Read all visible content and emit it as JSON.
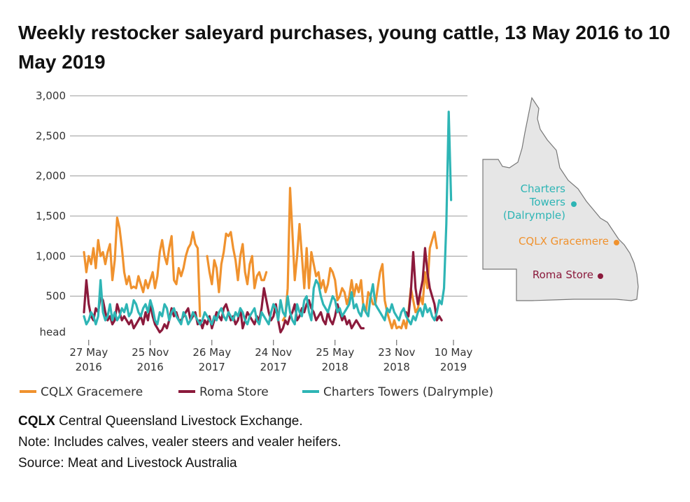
{
  "title": "Weekly restocker saleyard purchases, young cattle, 13 May 2016 to 10 May 2019",
  "colors": {
    "cqlx": "#F0922E",
    "roma": "#8B1A3C",
    "charters": "#2EB5B5",
    "grid": "#999999",
    "map_fill": "#E6E6E6",
    "map_stroke": "#777777"
  },
  "chart_data": {
    "type": "line",
    "y_unit_label": "head",
    "ylim": [
      0,
      3000
    ],
    "yticks": [
      500,
      1000,
      1500,
      2000,
      2500,
      3000
    ],
    "ytick_labels": [
      "500",
      "1,000",
      "1,500",
      "2,000",
      "2,500",
      "3,000"
    ],
    "xlim_week": [
      0,
      156
    ],
    "xticks": [
      {
        "week": 2,
        "line1": "27 May",
        "line2": "2016"
      },
      {
        "week": 28,
        "line1": "25 Nov",
        "line2": "2016"
      },
      {
        "week": 54,
        "line1": "26 May",
        "line2": "2017"
      },
      {
        "week": 80,
        "line1": "24 Nov",
        "line2": "2017"
      },
      {
        "week": 106,
        "line1": "25 May",
        "line2": "2018"
      },
      {
        "week": 132,
        "line1": "23 Nov",
        "line2": "2018"
      },
      {
        "week": 156,
        "line1": "10 May",
        "line2": "2019"
      }
    ],
    "series": [
      {
        "name": "CQLX Gracemere",
        "color": "#F0922E",
        "values": [
          1050,
          800,
          1000,
          900,
          1100,
          850,
          1200,
          1000,
          1050,
          900,
          1050,
          1150,
          700,
          950,
          1480,
          1350,
          1100,
          800,
          650,
          750,
          600,
          620,
          600,
          750,
          650,
          550,
          700,
          600,
          700,
          800,
          600,
          750,
          1050,
          1200,
          1000,
          900,
          1100,
          1250,
          700,
          650,
          850,
          750,
          850,
          1000,
          1100,
          1150,
          1300,
          1150,
          1100,
          250,
          null,
          null,
          1000,
          800,
          650,
          950,
          850,
          550,
          900,
          1050,
          1280,
          1250,
          1300,
          1100,
          950,
          700,
          1000,
          1150,
          800,
          650,
          900,
          1000,
          600,
          750,
          800,
          700,
          700,
          800,
          null,
          null,
          400,
          300,
          null,
          null,
          200,
          250,
          600,
          1850,
          1300,
          700,
          1000,
          1400,
          1000,
          600,
          1100,
          600,
          1050,
          900,
          750,
          800,
          600,
          700,
          550,
          650,
          850,
          800,
          700,
          450,
          500,
          600,
          550,
          400,
          500,
          700,
          500,
          650,
          550,
          700,
          350,
          300,
          550,
          500,
          400,
          400,
          600,
          800,
          900,
          450,
          300,
          200,
          100,
          200,
          100,
          120,
          100,
          200,
          100,
          300,
          600,
          450,
          300,
          350,
          500,
          400,
          800,
          600,
          1100,
          1200,
          1300,
          1100
        ]
      },
      {
        "name": "Roma Store",
        "color": "#8B1A3C",
        "values": [
          300,
          700,
          400,
          250,
          200,
          350,
          300,
          500,
          450,
          300,
          200,
          250,
          150,
          200,
          400,
          300,
          200,
          250,
          200,
          150,
          200,
          100,
          150,
          200,
          250,
          150,
          300,
          200,
          400,
          250,
          150,
          100,
          50,
          80,
          150,
          100,
          200,
          350,
          250,
          300,
          200,
          200,
          250,
          300,
          350,
          200,
          250,
          300,
          150,
          200,
          100,
          200,
          150,
          250,
          100,
          200,
          300,
          250,
          200,
          350,
          400,
          300,
          200,
          250,
          150,
          200,
          350,
          100,
          200,
          300,
          250,
          200,
          150,
          250,
          200,
          350,
          600,
          450,
          300,
          200,
          250,
          400,
          200,
          50,
          100,
          200,
          150,
          250,
          300,
          400,
          200,
          250,
          350,
          300,
          400,
          450,
          350,
          300,
          200,
          250,
          300,
          200,
          150,
          300,
          200,
          150,
          250,
          400,
          300,
          200,
          250,
          150,
          200,
          100,
          150,
          200,
          150,
          100,
          100,
          null,
          null,
          null,
          null,
          null,
          null,
          null,
          null,
          null,
          null,
          null,
          null,
          null,
          null,
          null,
          null,
          null,
          300,
          250,
          550,
          1050,
          600,
          400,
          550,
          700,
          1100,
          800,
          600,
          500,
          400,
          200,
          250,
          200
        ]
      },
      {
        "name": "Charters Towers (Dalrymple)",
        "color": "#2EB5B5",
        "values": [
          250,
          150,
          200,
          300,
          250,
          150,
          250,
          700,
          300,
          200,
          250,
          400,
          200,
          300,
          200,
          250,
          350,
          300,
          400,
          250,
          300,
          450,
          400,
          300,
          250,
          350,
          400,
          300,
          450,
          350,
          200,
          150,
          300,
          250,
          400,
          350,
          200,
          300,
          350,
          250,
          200,
          150,
          300,
          250,
          150,
          200,
          300,
          250,
          200,
          150,
          200,
          300,
          250,
          200,
          150,
          250,
          200,
          300,
          350,
          250,
          200,
          300,
          250,
          200,
          300,
          250,
          350,
          300,
          200,
          150,
          250,
          300,
          350,
          200,
          150,
          300,
          250,
          200,
          150,
          300,
          400,
          350,
          200,
          450,
          300,
          250,
          500,
          300,
          200,
          150,
          400,
          300,
          250,
          450,
          500,
          300,
          200,
          600,
          700,
          650,
          500,
          400,
          350,
          300,
          400,
          500,
          450,
          300,
          350,
          250,
          300,
          350,
          400,
          550,
          350,
          400,
          300,
          250,
          400,
          300,
          250,
          500,
          650,
          400,
          350,
          300,
          250,
          200,
          350,
          300,
          400,
          300,
          250,
          200,
          300,
          350,
          250,
          200,
          150,
          250,
          200,
          300,
          350,
          250,
          400,
          300,
          350,
          250,
          200,
          300,
          450,
          400,
          600,
          1400,
          2800,
          1700
        ]
      }
    ],
    "legend": {
      "placement": "bottom",
      "items": [
        "CQLX Gracemere",
        "Roma Store",
        "Charters Towers (Dalrymple)"
      ]
    }
  },
  "map": {
    "labels": [
      {
        "key": "charters",
        "lines": [
          "Charters",
          "Towers",
          "(Dalrymple)"
        ]
      },
      {
        "key": "cqlx",
        "lines": [
          "CQLX Gracemere"
        ]
      },
      {
        "key": "roma",
        "lines": [
          "Roma Store"
        ]
      }
    ]
  },
  "notes": {
    "abbr": "CQLX",
    "abbr_def": "Central Queensland Livestock Exchange.",
    "note": "Note: Includes calves, vealer steers and vealer heifers.",
    "source": "Source: Meat and Livestock Australia"
  }
}
